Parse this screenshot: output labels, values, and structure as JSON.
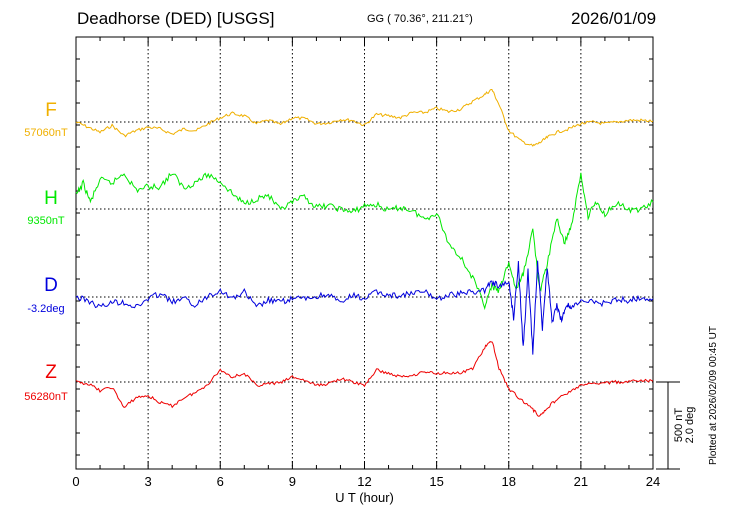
{
  "header": {
    "station": "Deadhorse (DED)  [USGS]",
    "coords": "GG ( 70.36°, 211.21°)",
    "date": "2026/01/09"
  },
  "plotted_note": "Plotted at 2026/02/09 00:45 UT",
  "chart_data": {
    "type": "line",
    "xlabel": "U T (hour)",
    "xlim": [
      0,
      24
    ],
    "xticks": [
      0,
      3,
      6,
      9,
      12,
      15,
      18,
      21,
      24
    ],
    "grid": true,
    "scale_bar": {
      "line1": "500 nT",
      "line2": "2.0 deg"
    },
    "series": [
      {
        "name": "F",
        "baseline_label": "57060nT",
        "color": "#f0b000",
        "x": [
          0,
          0.5,
          1,
          1.5,
          2,
          2.5,
          3,
          3.5,
          4,
          4.5,
          5,
          5.5,
          6,
          6.5,
          7,
          7.5,
          8,
          8.5,
          9,
          9.5,
          10,
          10.5,
          11,
          11.5,
          12,
          12.5,
          13,
          13.5,
          14,
          14.5,
          15,
          15.5,
          16,
          16.5,
          17,
          17.3,
          17.6,
          18,
          18.5,
          19,
          19.3,
          19.6,
          20,
          20.5,
          21,
          21.5,
          22,
          22.5,
          23,
          23.5,
          24
        ],
        "y": [
          0,
          -30,
          -60,
          -20,
          -80,
          -50,
          -30,
          -40,
          -70,
          -40,
          -50,
          -10,
          25,
          50,
          35,
          -10,
          10,
          -15,
          25,
          20,
          -10,
          -5,
          15,
          10,
          -20,
          45,
          35,
          25,
          55,
          55,
          80,
          60,
          75,
          120,
          160,
          190,
          100,
          -50,
          -110,
          -140,
          -120,
          -90,
          -60,
          -40,
          -10,
          0,
          -10,
          0,
          10,
          10,
          5
        ]
      },
      {
        "name": "H",
        "baseline_label": "9350nT",
        "color": "#00e800",
        "x": [
          0,
          0.3,
          0.6,
          1,
          1.5,
          2,
          2.5,
          3,
          3.5,
          4,
          4.5,
          5,
          5.5,
          6,
          6.5,
          7,
          7.5,
          8,
          8.5,
          9,
          9.5,
          10,
          10.5,
          11,
          11.5,
          12,
          12.5,
          13,
          13.5,
          14,
          14.5,
          15,
          15.5,
          16,
          16.5,
          17,
          17.3,
          17.6,
          18,
          18.3,
          18.6,
          19,
          19.3,
          19.6,
          20,
          20.3,
          20.6,
          21,
          21.3,
          21.6,
          22,
          22.5,
          23,
          23.5,
          24
        ],
        "y": [
          80,
          150,
          40,
          170,
          150,
          210,
          110,
          130,
          130,
          210,
          120,
          160,
          200,
          160,
          90,
          30,
          60,
          80,
          -10,
          40,
          70,
          10,
          20,
          0,
          -20,
          20,
          25,
          -10,
          10,
          -10,
          -60,
          -20,
          -200,
          -280,
          -400,
          -560,
          -450,
          -480,
          -310,
          -470,
          -380,
          -120,
          -480,
          -320,
          -50,
          -200,
          -100,
          200,
          -40,
          40,
          -30,
          40,
          -10,
          0,
          40
        ]
      },
      {
        "name": "D",
        "baseline_label": "-3.2deg",
        "color": "#0000dd",
        "x": [
          0,
          0.5,
          1,
          1.5,
          2,
          2.5,
          3,
          3.5,
          4,
          4.5,
          5,
          5.5,
          6,
          6.5,
          7,
          7.5,
          8,
          8.5,
          9,
          9.5,
          10,
          10.5,
          11,
          11.5,
          12,
          12.5,
          13,
          13.5,
          14,
          14.5,
          15,
          15.5,
          16,
          16.5,
          17,
          17.3,
          17.6,
          18,
          18.2,
          18.4,
          18.6,
          18.8,
          19,
          19.2,
          19.4,
          19.6,
          19.8,
          20,
          20.2,
          20.4,
          20.6,
          21,
          21.5,
          22,
          22.5,
          23,
          23.5,
          24
        ],
        "y": [
          0,
          -20,
          -60,
          -30,
          -30,
          -60,
          -10,
          20,
          -30,
          -10,
          -50,
          10,
          40,
          -10,
          30,
          -60,
          -20,
          -30,
          -10,
          -10,
          0,
          20,
          -40,
          10,
          -10,
          30,
          10,
          10,
          20,
          30,
          -10,
          10,
          20,
          30,
          40,
          90,
          60,
          90,
          -120,
          200,
          -300,
          150,
          -320,
          210,
          -180,
          180,
          -150,
          -50,
          -140,
          -40,
          -60,
          -30,
          -20,
          -40,
          -10,
          -20,
          0,
          -10
        ]
      },
      {
        "name": "Z",
        "baseline_label": "56280nT",
        "color": "#ee0000",
        "x": [
          0,
          0.5,
          1,
          1.5,
          2,
          2.5,
          3,
          3.5,
          4,
          4.5,
          5,
          5.5,
          6,
          6.5,
          7,
          7.5,
          8,
          8.5,
          9,
          9.5,
          10,
          10.5,
          11,
          11.5,
          12,
          12.5,
          13,
          13.5,
          14,
          14.5,
          15,
          15.5,
          16,
          16.5,
          17,
          17.3,
          17.6,
          18,
          18.5,
          19,
          19.3,
          19.6,
          20,
          20.5,
          21,
          21.5,
          22,
          22.5,
          23,
          23.5,
          24
        ],
        "y": [
          0,
          -10,
          -50,
          -30,
          -150,
          -90,
          -80,
          -120,
          -140,
          -90,
          -60,
          -10,
          70,
          30,
          50,
          -20,
          -10,
          -5,
          30,
          10,
          -20,
          -10,
          20,
          0,
          -20,
          70,
          50,
          30,
          40,
          60,
          50,
          55,
          50,
          80,
          200,
          240,
          80,
          -40,
          -100,
          -160,
          -200,
          -150,
          -100,
          -60,
          -20,
          -10,
          -5,
          0,
          0,
          10,
          5
        ]
      }
    ]
  }
}
